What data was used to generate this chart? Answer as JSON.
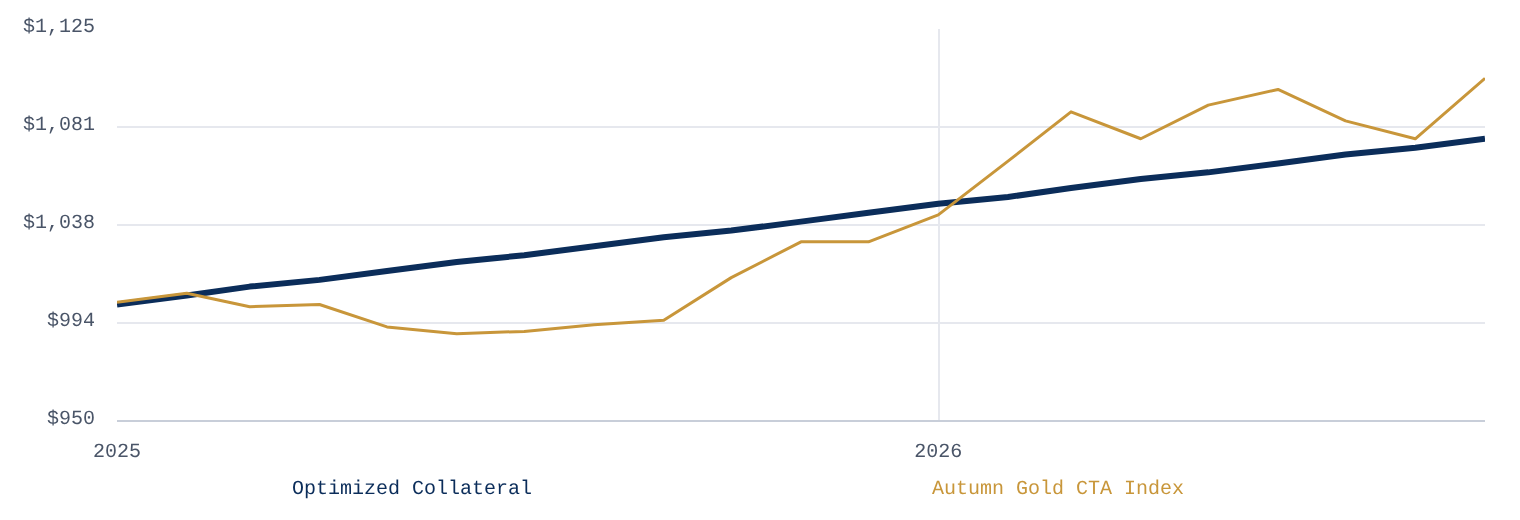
{
  "chart_data": {
    "type": "line",
    "x": [
      "2025-01",
      "2025-02",
      "2025-03",
      "2025-04",
      "2025-05",
      "2025-06",
      "2025-07",
      "2025-08",
      "2025-09",
      "2025-10",
      "2025-11",
      "2025-12",
      "2026-01",
      "2026-02",
      "2026-03",
      "2026-04",
      "2026-05",
      "2026-06",
      "2026-07",
      "2026-08",
      "2026-09"
    ],
    "series": [
      {
        "name": "Optimized Collateral",
        "color": "#0b2d5a",
        "values": [
          1002,
          1006,
          1010,
          1013,
          1017,
          1021,
          1024,
          1028,
          1032,
          1035,
          1039,
          1043,
          1047,
          1050,
          1054,
          1058,
          1061,
          1065,
          1069,
          1072,
          1076
        ]
      },
      {
        "name": "Autumn Gold CTA Index",
        "color": "#c8963a",
        "values": [
          1003,
          1007,
          1001,
          1002,
          992,
          989,
          990,
          993,
          995,
          1014,
          1030,
          1030,
          1042,
          1066,
          1088,
          1076,
          1091,
          1098,
          1084,
          1076,
          1103
        ]
      }
    ],
    "xlim": [
      "2025-01",
      "2026-09"
    ],
    "xticks": [
      {
        "value": "2025-01",
        "label": "2025"
      },
      {
        "value": "2026-01",
        "label": "2026"
      }
    ],
    "ylim": [
      950,
      1125
    ],
    "yticks": [
      {
        "value": 950,
        "label": "$950"
      },
      {
        "value": 993.75,
        "label": "$994"
      },
      {
        "value": 1037.5,
        "label": "$1,038"
      },
      {
        "value": 1081.25,
        "label": "$1,081"
      },
      {
        "value": 1125,
        "label": "$1,125"
      }
    ],
    "grid": true,
    "legend": "bottom",
    "marker": "none",
    "line_style": "solid"
  }
}
